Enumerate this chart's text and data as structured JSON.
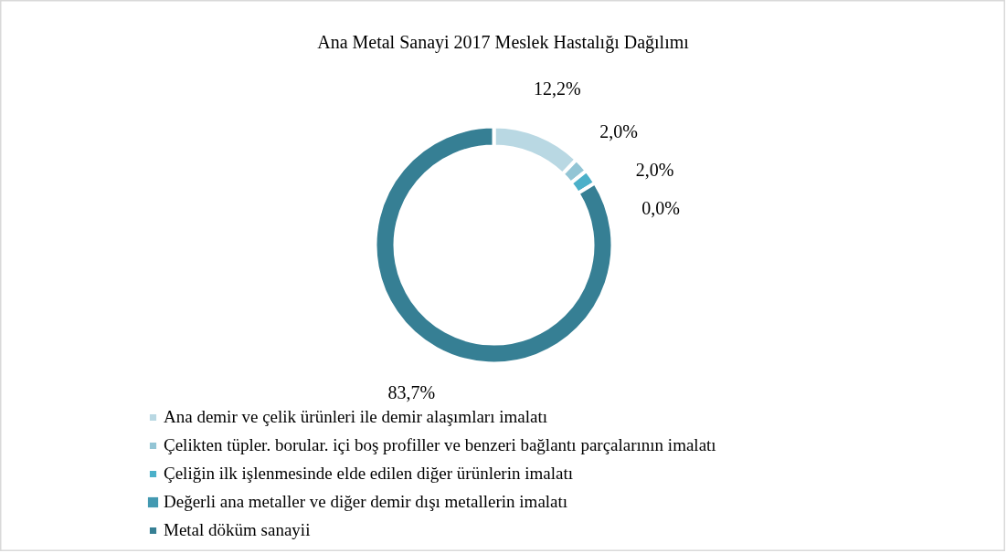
{
  "chart_data": {
    "type": "donut",
    "title": "Ana Metal Sanayi 2017 Meslek Hastalığı Dağılımı",
    "categories": [
      "Ana demir ve çelik ürünleri ile demir alaşımları imalatı",
      "Çelikten tüpler. borular. içi boş profiller ve benzeri bağlantı parçalarının imalatı",
      "Çeliğin ilk işlenmesinde elde edilen diğer ürünlerin imalatı",
      "Değerli ana metaller ve diğer demir dışı metallerin imalatı",
      "Metal döküm sanayii"
    ],
    "values": [
      12.2,
      2.0,
      2.0,
      0.0,
      83.7
    ],
    "value_labels": [
      "12,2%",
      "2,0%",
      "2,0%",
      "0,0%",
      "83,7%"
    ],
    "colors": [
      "#b9d8e3",
      "#93c5d5",
      "#4bb0c9",
      "#4399b1",
      "#367f94"
    ],
    "legend": "bottom"
  }
}
